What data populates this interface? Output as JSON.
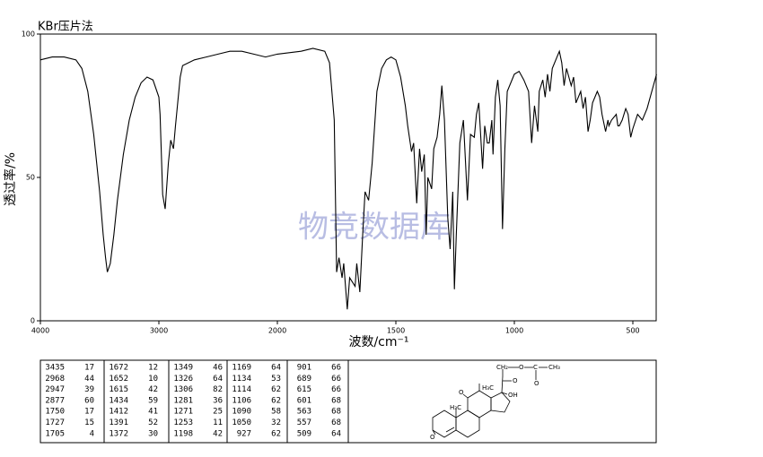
{
  "chart_data": {
    "type": "line",
    "title": "KBr压片法",
    "x_label": "波数/cm⁻¹",
    "y_label": "透过率/%",
    "watermark": "物竞数据库",
    "color": "#000000",
    "xlim": [
      4000,
      400
    ],
    "ylim": [
      0,
      100
    ],
    "xticks": [
      4000,
      3000,
      2000,
      1500,
      1000,
      500
    ],
    "yticks": [
      0,
      50,
      100
    ],
    "x": [
      4000,
      3900,
      3800,
      3700,
      3650,
      3600,
      3550,
      3500,
      3470,
      3450,
      3435,
      3410,
      3380,
      3350,
      3300,
      3250,
      3200,
      3150,
      3100,
      3050,
      3000,
      2990,
      2968,
      2947,
      2920,
      2900,
      2877,
      2860,
      2820,
      2800,
      2700,
      2600,
      2500,
      2400,
      2300,
      2200,
      2100,
      2000,
      1900,
      1850,
      1800,
      1780,
      1760,
      1750,
      1740,
      1727,
      1720,
      1705,
      1695,
      1672,
      1665,
      1652,
      1640,
      1630,
      1615,
      1600,
      1580,
      1560,
      1540,
      1520,
      1500,
      1480,
      1460,
      1450,
      1434,
      1425,
      1412,
      1400,
      1391,
      1380,
      1372,
      1365,
      1349,
      1340,
      1326,
      1315,
      1306,
      1295,
      1281,
      1271,
      1260,
      1253,
      1245,
      1230,
      1215,
      1198,
      1185,
      1169,
      1160,
      1150,
      1134,
      1125,
      1114,
      1106,
      1095,
      1090,
      1080,
      1070,
      1060,
      1050,
      1040,
      1030,
      1000,
      980,
      960,
      940,
      927,
      915,
      901,
      895,
      880,
      870,
      860,
      850,
      840,
      820,
      810,
      800,
      790,
      780,
      760,
      750,
      740,
      720,
      710,
      700,
      689,
      680,
      670,
      650,
      640,
      630,
      615,
      605,
      601,
      590,
      570,
      563,
      557,
      545,
      530,
      520,
      509,
      500,
      480,
      460,
      440,
      420,
      400
    ],
    "values": [
      91,
      92,
      92,
      91,
      88,
      80,
      65,
      45,
      30,
      22,
      17,
      20,
      30,
      42,
      58,
      70,
      78,
      83,
      85,
      84,
      78,
      72,
      44,
      39,
      55,
      63,
      60,
      68,
      85,
      89,
      91,
      92,
      93,
      94,
      94,
      93,
      92,
      93,
      94,
      95,
      94,
      90,
      70,
      17,
      22,
      15,
      20,
      4,
      15,
      12,
      20,
      10,
      30,
      45,
      42,
      55,
      80,
      88,
      91,
      92,
      91,
      85,
      75,
      68,
      59,
      62,
      41,
      60,
      52,
      58,
      30,
      50,
      46,
      60,
      64,
      72,
      82,
      70,
      36,
      25,
      45,
      11,
      30,
      62,
      70,
      42,
      65,
      64,
      72,
      76,
      53,
      68,
      62,
      62,
      70,
      58,
      78,
      84,
      75,
      32,
      60,
      80,
      86,
      87,
      84,
      80,
      62,
      75,
      66,
      80,
      84,
      78,
      86,
      80,
      88,
      92,
      94,
      90,
      82,
      88,
      82,
      85,
      76,
      80,
      74,
      78,
      66,
      70,
      76,
      80,
      78,
      72,
      66,
      70,
      68,
      70,
      72,
      68,
      68,
      70,
      74,
      72,
      64,
      67,
      72,
      70,
      74,
      80,
      86
    ]
  },
  "peak_table": {
    "columns": [
      [
        [
          3435,
          17
        ],
        [
          2968,
          44
        ],
        [
          2947,
          39
        ],
        [
          2877,
          60
        ],
        [
          1750,
          17
        ],
        [
          1727,
          15
        ],
        [
          1705,
          4
        ]
      ],
      [
        [
          1672,
          12
        ],
        [
          1652,
          10
        ],
        [
          1615,
          42
        ],
        [
          1434,
          59
        ],
        [
          1412,
          41
        ],
        [
          1391,
          52
        ],
        [
          1372,
          30
        ]
      ],
      [
        [
          1349,
          46
        ],
        [
          1326,
          64
        ],
        [
          1306,
          82
        ],
        [
          1281,
          36
        ],
        [
          1271,
          25
        ],
        [
          1253,
          11
        ],
        [
          1198,
          42
        ]
      ],
      [
        [
          1169,
          64
        ],
        [
          1134,
          53
        ],
        [
          1114,
          62
        ],
        [
          1106,
          62
        ],
        [
          1090,
          58
        ],
        [
          1050,
          32
        ],
        [
          927,
          62
        ]
      ],
      [
        [
          901,
          66
        ],
        [
          689,
          66
        ],
        [
          615,
          66
        ],
        [
          601,
          68
        ],
        [
          563,
          68
        ],
        [
          557,
          68
        ],
        [
          509,
          64
        ]
      ]
    ]
  },
  "structure": {
    "labels": [
      "CH₂",
      "O",
      "C",
      "CH₃",
      "O",
      "O",
      "H₃C",
      "OH",
      "H₃C",
      "O",
      "O"
    ]
  }
}
